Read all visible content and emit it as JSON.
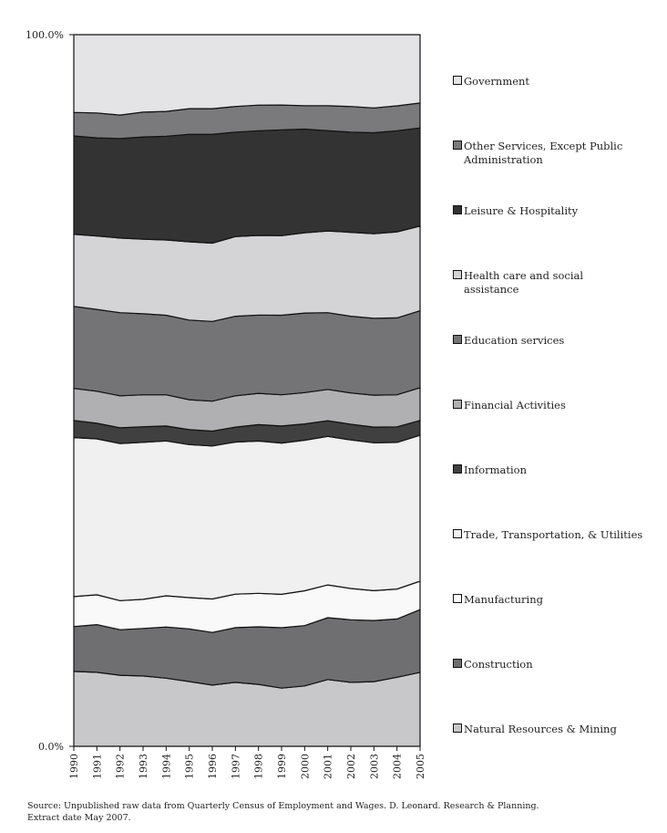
{
  "chart_data": {
    "type": "area",
    "stacked": "percent",
    "x": [
      1990,
      1991,
      1992,
      1993,
      1994,
      1995,
      1996,
      1997,
      1998,
      1999,
      2000,
      2001,
      2002,
      2003,
      2004,
      2005
    ],
    "ylim": [
      0,
      100
    ],
    "ytick_labels": [
      "0.0%",
      "100.0%"
    ],
    "legend_placement": "right",
    "grid": false,
    "series": [
      {
        "name": "Natural Resources & Mining",
        "color": "#c8c8ca",
        "values": [
          10.5,
          10.4,
          10.0,
          9.9,
          9.6,
          9.1,
          8.6,
          9.0,
          8.7,
          8.2,
          8.5,
          9.4,
          9.0,
          9.1,
          9.7,
          10.4
        ]
      },
      {
        "name": "Construction",
        "color": "#6f6f71",
        "values": [
          6.3,
          6.7,
          6.4,
          6.7,
          7.2,
          7.4,
          7.4,
          7.7,
          8.1,
          8.5,
          8.5,
          8.7,
          8.8,
          8.6,
          8.2,
          8.8
        ]
      },
      {
        "name": "Manufacturing",
        "color": "#f9f9f9",
        "values": [
          4.2,
          4.2,
          4.1,
          4.1,
          4.4,
          4.4,
          4.7,
          4.7,
          4.7,
          4.7,
          4.9,
          4.6,
          4.4,
          4.2,
          4.2,
          4.0
        ]
      },
      {
        "name": "Trade, Transportation, & Utilities",
        "color": "#eff0ef",
        "values": [
          22.3,
          21.9,
          22.1,
          22.1,
          21.8,
          21.5,
          21.5,
          21.4,
          21.4,
          21.3,
          21.2,
          20.9,
          20.9,
          20.8,
          20.6,
          20.5
        ]
      },
      {
        "name": "Information",
        "color": "#404040",
        "values": [
          2.4,
          2.2,
          2.2,
          2.2,
          2.1,
          2.1,
          2.1,
          2.1,
          2.3,
          2.4,
          2.3,
          2.2,
          2.2,
          2.2,
          2.2,
          2.1
        ]
      },
      {
        "name": "Financial Activities",
        "color": "#b0b0b2",
        "values": [
          4.5,
          4.5,
          4.5,
          4.5,
          4.4,
          4.2,
          4.2,
          4.4,
          4.4,
          4.4,
          4.4,
          4.4,
          4.4,
          4.5,
          4.5,
          4.6
        ]
      },
      {
        "name": "Education services",
        "color": "#747476",
        "values": [
          11.5,
          11.5,
          11.7,
          11.4,
          11.2,
          11.2,
          11.2,
          11.2,
          11.0,
          11.2,
          11.2,
          10.8,
          10.8,
          10.8,
          10.8,
          10.8
        ]
      },
      {
        "name": "Health care and social assistance",
        "color": "#d4d4d6",
        "values": [
          10.1,
          10.3,
          10.5,
          10.5,
          10.6,
          11.0,
          11.0,
          11.2,
          11.2,
          11.2,
          11.3,
          11.5,
          11.8,
          11.9,
          12.1,
          11.9
        ]
      },
      {
        "name": "Leisure & Hospitality",
        "color": "#333333",
        "values": [
          13.8,
          13.8,
          14.0,
          14.4,
          14.6,
          15.1,
          15.3,
          14.7,
          14.7,
          14.9,
          14.6,
          14.1,
          14.1,
          14.2,
          14.2,
          13.8
        ]
      },
      {
        "name": "Other Services, Except Public Administration",
        "color": "#7a7a7c",
        "values": [
          3.3,
          3.5,
          3.3,
          3.5,
          3.5,
          3.6,
          3.6,
          3.6,
          3.6,
          3.5,
          3.3,
          3.5,
          3.6,
          3.5,
          3.5,
          3.5
        ]
      },
      {
        "name": "Government",
        "color": "#e4e4e6",
        "values": [
          10.9,
          11.0,
          11.3,
          10.9,
          10.8,
          10.4,
          10.4,
          10.1,
          9.9,
          9.9,
          10.0,
          10.0,
          10.1,
          10.3,
          10.0,
          9.6
        ]
      }
    ],
    "legend_lines": [
      [
        "Government"
      ],
      [
        "Other Services, Except Public",
        "Administration"
      ],
      [
        "Leisure & Hospitality"
      ],
      [
        "Health care and social",
        "assistance"
      ],
      [
        "Education services"
      ],
      [
        "Financial Activities"
      ],
      [
        "Information"
      ],
      [
        "Trade, Transportation, & Utilities"
      ],
      [
        "Manufacturing"
      ],
      [
        "Construction"
      ],
      [
        "Natural Resources & Mining"
      ]
    ]
  },
  "source": {
    "line1": "Source: Unpublished raw data from Quarterly Census of Employment and Wages. D. Leonard. Research & Planning.",
    "line2": "Extract date May 2007."
  }
}
